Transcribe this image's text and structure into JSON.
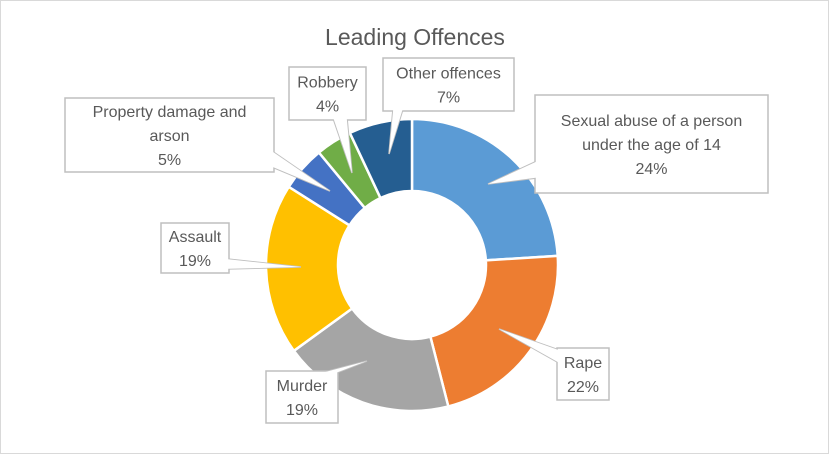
{
  "chart_data": {
    "type": "pie",
    "variant": "doughnut",
    "title": "Leading Offences",
    "start_angle": "top, clockwise",
    "slices": [
      {
        "label": "Sexual abuse of a person under the age of 14",
        "label_lines": [
          "Sexual abuse of a person",
          "under the age of 14"
        ],
        "value": 24,
        "value_label": "24%",
        "color": "#5B9BD5"
      },
      {
        "label": "Rape",
        "label_lines": [
          "Rape"
        ],
        "value": 22,
        "value_label": "22%",
        "color": "#ED7D31"
      },
      {
        "label": "Murder",
        "label_lines": [
          "Murder"
        ],
        "value": 19,
        "value_label": "19%",
        "color": "#A5A5A5"
      },
      {
        "label": "Assault",
        "label_lines": [
          "Assault"
        ],
        "value": 19,
        "value_label": "19%",
        "color": "#FFC000"
      },
      {
        "label": "Property damage and arson",
        "label_lines": [
          "Property damage and",
          "arson"
        ],
        "value": 5,
        "value_label": "5%",
        "color": "#4472C4"
      },
      {
        "label": "Robbery",
        "label_lines": [
          "Robbery"
        ],
        "value": 4,
        "value_label": "4%",
        "color": "#70AD47"
      },
      {
        "label": "Other offences",
        "label_lines": [
          "Other offences"
        ],
        "value": 7,
        "value_label": "7%",
        "color": "#255E91"
      }
    ]
  }
}
